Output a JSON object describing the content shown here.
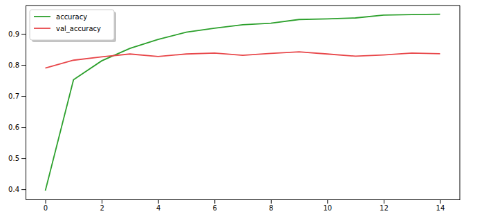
{
  "chart_data": {
    "type": "line",
    "x": [
      0,
      1,
      2,
      3,
      4,
      5,
      6,
      7,
      8,
      9,
      10,
      11,
      12,
      13,
      14
    ],
    "series": [
      {
        "name": "accuracy",
        "color": "#2ca02c",
        "line_style": "solid",
        "values": [
          0.395,
          0.752,
          0.813,
          0.853,
          0.882,
          0.905,
          0.918,
          0.929,
          0.934,
          0.946,
          0.948,
          0.951,
          0.96,
          0.962,
          0.963
        ]
      },
      {
        "name": "val_accuracy",
        "color": "#e8474a",
        "line_style": "solid",
        "values": [
          0.79,
          0.815,
          0.826,
          0.835,
          0.827,
          0.835,
          0.838,
          0.831,
          0.837,
          0.842,
          0.835,
          0.828,
          0.832,
          0.838,
          0.836
        ]
      }
    ],
    "xlim": [
      -0.7,
      14.7
    ],
    "ylim": [
      0.367,
      0.991
    ],
    "xticks": [
      0,
      2,
      4,
      6,
      8,
      10,
      12,
      14
    ],
    "yticks": [
      0.4,
      0.5,
      0.6,
      0.7,
      0.8,
      0.9
    ],
    "grid": false,
    "legend": "upper left"
  }
}
